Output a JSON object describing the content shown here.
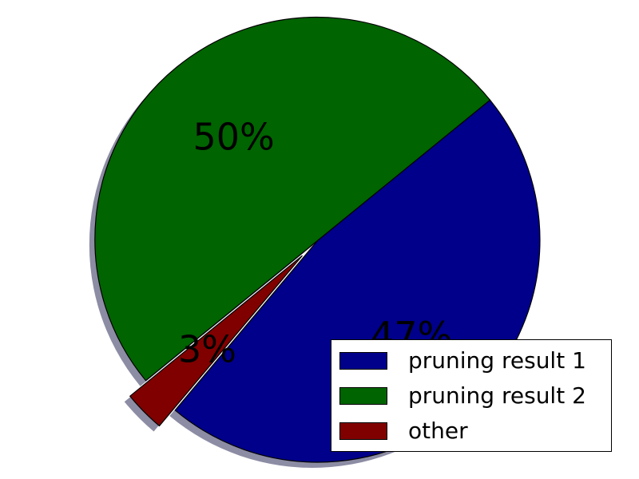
{
  "chart_data": {
    "type": "pie",
    "title": "",
    "slices": [
      {
        "label": "pruning result 1",
        "value": 47,
        "pct_label": "47%",
        "color": "#00008b",
        "exploded": false
      },
      {
        "label": "pruning result 2",
        "value": 50,
        "pct_label": "50%",
        "color": "#006400",
        "exploded": false
      },
      {
        "label": "other",
        "value": 3,
        "pct_label": "3%",
        "color": "#800000",
        "exploded": true
      }
    ],
    "shadow": true,
    "edge_color": "#000000",
    "legend_placement": "lower-right"
  }
}
